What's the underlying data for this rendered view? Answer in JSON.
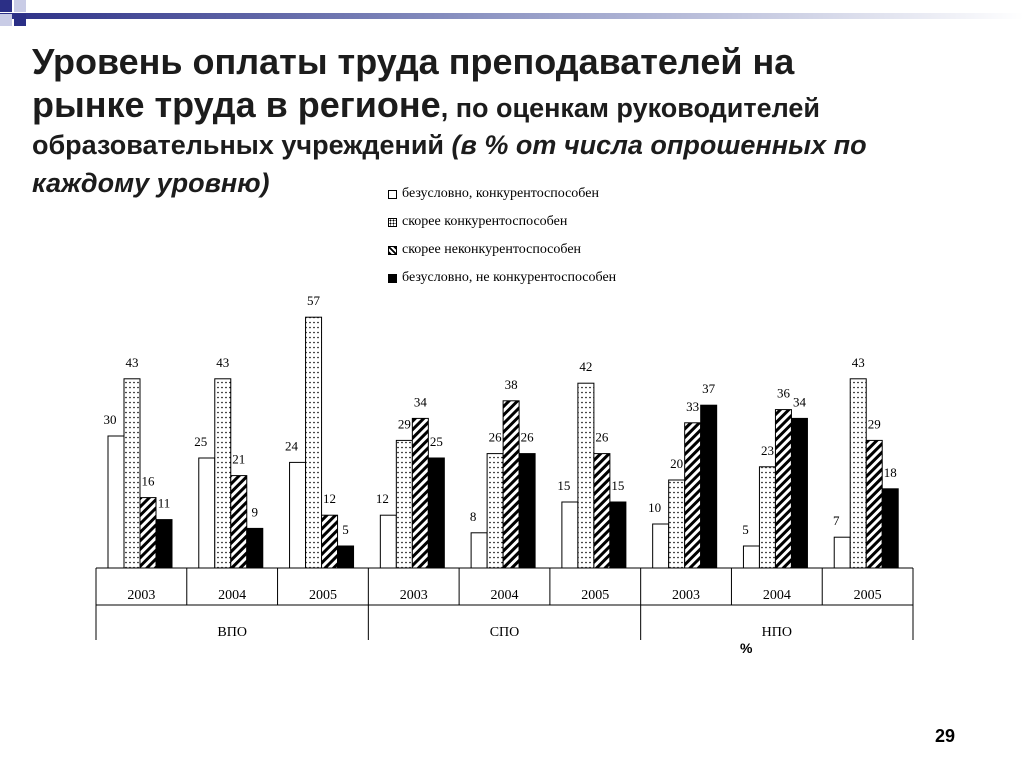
{
  "slide": {
    "title_line1": "Уровень оплаты труда преподавателей на",
    "title_line2_main": "рынке труда в регионе",
    "title_line2_rest": ", по оценкам руководителей",
    "title_line3_plain": "образовательных учреждений",
    "title_line3_italic": " (в % от числа опрошенных по",
    "title_line4_italic": "каждому уровню)",
    "page_number": "29"
  },
  "chart_data": {
    "type": "bar",
    "unit_label": "%",
    "legend": [
      {
        "name": "безусловно, конкурентоспособен",
        "pattern": "white"
      },
      {
        "name": "скорее конкурентоспособен",
        "pattern": "dots"
      },
      {
        "name": "скорее неконкурентоспособен",
        "pattern": "diagonal"
      },
      {
        "name": "безусловно, не конкурентоспособен",
        "pattern": "black"
      }
    ],
    "groups": [
      {
        "level": "ВПО",
        "years": [
          {
            "year": "2003",
            "values": [
              30,
              43,
              16,
              11
            ]
          },
          {
            "year": "2004",
            "values": [
              25,
              43,
              21,
              9
            ]
          },
          {
            "year": "2005",
            "values": [
              24,
              57,
              12,
              5
            ]
          }
        ]
      },
      {
        "level": "СПО",
        "years": [
          {
            "year": "2003",
            "values": [
              12,
              29,
              34,
              25
            ]
          },
          {
            "year": "2004",
            "values": [
              8,
              26,
              38,
              26
            ]
          },
          {
            "year": "2005",
            "values": [
              15,
              42,
              26,
              15
            ]
          }
        ]
      },
      {
        "level": "НПО",
        "years": [
          {
            "year": "2003",
            "values": [
              10,
              20,
              33,
              37
            ]
          },
          {
            "year": "2004",
            "values": [
              5,
              23,
              36,
              34
            ]
          },
          {
            "year": "2005",
            "values": [
              7,
              43,
              29,
              18
            ]
          }
        ]
      }
    ],
    "colors": {
      "fill_white": "#ffffff",
      "stroke": "#000000",
      "black": "#000000",
      "accent": "#2e3a8c"
    }
  }
}
